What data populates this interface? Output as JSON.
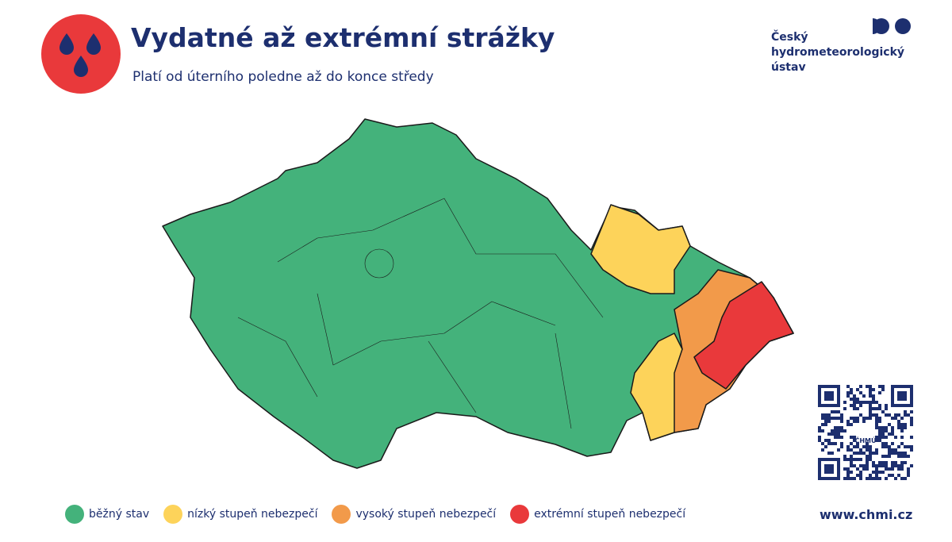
{
  "header": {
    "title": "Vydatné až extrémní strážky",
    "subtitle": "Platí od úterního poledne až do konce středy"
  },
  "logo": {
    "lines": [
      "Český",
      "hydrometeorologický",
      "ústav"
    ]
  },
  "legend": [
    {
      "label": "běžný stav",
      "color": "#44b27b"
    },
    {
      "label": "nízký stupeň nebezpečí",
      "color": "#fdd35a"
    },
    {
      "label": "vysoký stupeň nebezpečí",
      "color": "#f29a4a"
    },
    {
      "label": "extrémní stupeň nebezpečí",
      "color": "#e9393b"
    }
  ],
  "qr": {
    "label": "ČHMÚ"
  },
  "footer": {
    "url": "www.chmi.cz"
  }
}
